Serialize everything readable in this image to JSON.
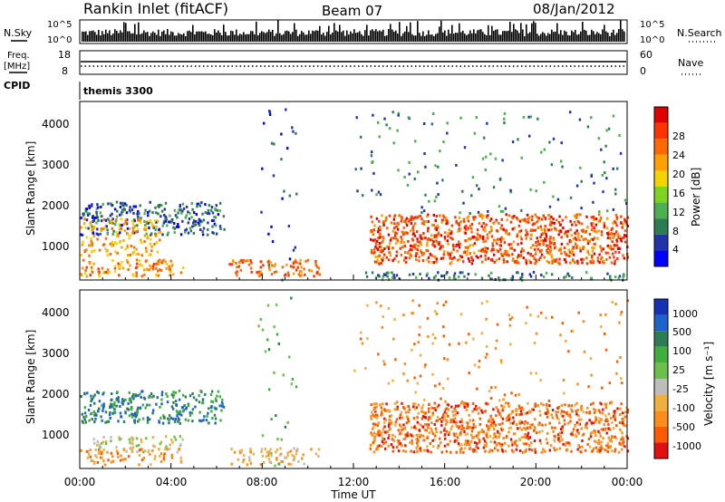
{
  "header": {
    "station": "Rankin Inlet (fitACF)",
    "beam": "Beam 07",
    "date": "08/Jan/2012"
  },
  "noise_panel": {
    "left_label": "N.Sky",
    "right_label": "N.Search",
    "tick_top": "10^5",
    "tick_bottom": "10^0",
    "right_tick_top": "10^5",
    "right_tick_bottom": "10^0"
  },
  "freq_panel": {
    "left_label_line1": "Freq.",
    "left_label_line2": "[MHz]",
    "left_tick_top": "18",
    "left_tick_bottom": "8",
    "right_label": "Nave",
    "right_tick_top": "60",
    "right_tick_bottom": "0"
  },
  "cpid": {
    "label": "CPID",
    "value": "themis 3300"
  },
  "colors": {
    "power_scale": [
      "#0000ff",
      "#2233aa",
      "#2e7d52",
      "#4caf50",
      "#7ed321",
      "#f5d300",
      "#ffa000",
      "#ff6a00",
      "#ff3300",
      "#e00000"
    ],
    "velocity_scale": [
      "#1432b4",
      "#1e64c8",
      "#2e7d52",
      "#3fae3f",
      "#6cc04a",
      "#bdbdbd",
      "#f0b040",
      "#ff8c1a",
      "#ff5a00",
      "#e01010"
    ]
  },
  "chart_data": [
    {
      "type": "heatmap",
      "name": "power",
      "ylabel": "Slant Range [km]",
      "ylim": [
        180,
        4500
      ],
      "yticks": [
        "1000",
        "2000",
        "3000",
        "4000"
      ],
      "colorbar_label": "Power [dB]",
      "colorbar_ticks": [
        "4",
        "8",
        "12",
        "16",
        "20",
        "24",
        "28"
      ],
      "colorbar_range": [
        0,
        30
      ]
    },
    {
      "type": "heatmap",
      "name": "velocity",
      "ylabel": "Slant Range [km]",
      "xlabel": "Time UT",
      "ylim": [
        180,
        4500
      ],
      "yticks": [
        "1000",
        "2000",
        "3000",
        "4000"
      ],
      "xticks": [
        "00:00",
        "04:00",
        "08:00",
        "12:00",
        "16:00",
        "20:00",
        "00:00"
      ],
      "colorbar_label": "Velocity [m s⁻¹]",
      "colorbar_ticks": [
        "1000",
        "500",
        "100",
        "25",
        "-25",
        "-100",
        "-500",
        "-1000"
      ]
    }
  ]
}
